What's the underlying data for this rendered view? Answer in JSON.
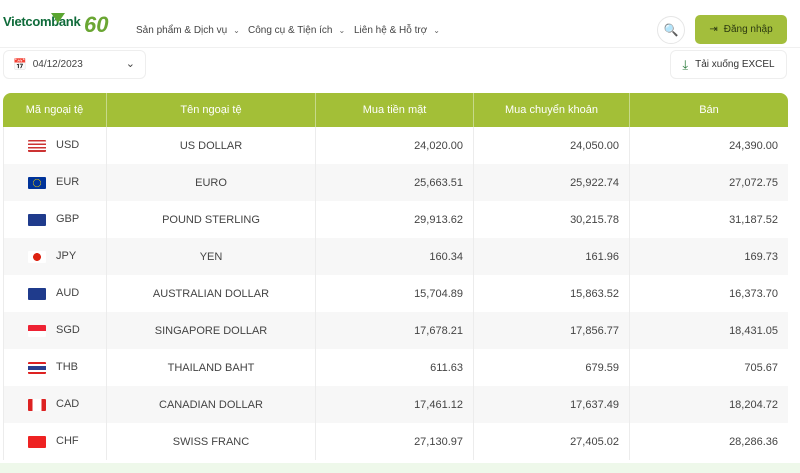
{
  "brand": {
    "name": "Vietcombank",
    "anniversary": "60"
  },
  "nav": {
    "items": [
      "Sản phẩm & Dịch vụ",
      "Công cụ & Tiện ích",
      "Liên hệ & Hỗ trợ"
    ],
    "login": "Đăng nhập"
  },
  "filter": {
    "date": "04/12/2023",
    "download": "Tải xuống EXCEL"
  },
  "colors": {
    "accent": "#a3bf37",
    "brand": "#0f6b3a"
  },
  "table": {
    "headers": [
      "Mã ngoại tệ",
      "Tên ngoại tệ",
      "Mua tiền mặt",
      "Mua chuyển khoản",
      "Bán"
    ],
    "rows": [
      {
        "code": "USD",
        "name": "US DOLLAR",
        "cash": "24,020.00",
        "transfer": "24,050.00",
        "sell": "24,390.00",
        "flag": "us-flag"
      },
      {
        "code": "EUR",
        "name": "EURO",
        "cash": "25,663.51",
        "transfer": "25,922.74",
        "sell": "27,072.75",
        "flag": "eu-flag"
      },
      {
        "code": "GBP",
        "name": "POUND STERLING",
        "cash": "29,913.62",
        "transfer": "30,215.78",
        "sell": "31,187.52",
        "flag": "uk-flag"
      },
      {
        "code": "JPY",
        "name": "YEN",
        "cash": "160.34",
        "transfer": "161.96",
        "sell": "169.73",
        "flag": "jp-flag"
      },
      {
        "code": "AUD",
        "name": "AUSTRALIAN DOLLAR",
        "cash": "15,704.89",
        "transfer": "15,863.52",
        "sell": "16,373.70",
        "flag": "au-flag"
      },
      {
        "code": "SGD",
        "name": "SINGAPORE DOLLAR",
        "cash": "17,678.21",
        "transfer": "17,856.77",
        "sell": "18,431.05",
        "flag": "sg-flag"
      },
      {
        "code": "THB",
        "name": "THAILAND BAHT",
        "cash": "611.63",
        "transfer": "679.59",
        "sell": "705.67",
        "flag": "th-flag"
      },
      {
        "code": "CAD",
        "name": "CANADIAN DOLLAR",
        "cash": "17,461.12",
        "transfer": "17,637.49",
        "sell": "18,204.72",
        "flag": "ca-flag"
      },
      {
        "code": "CHF",
        "name": "SWISS FRANC",
        "cash": "27,130.97",
        "transfer": "27,405.02",
        "sell": "28,286.36",
        "flag": "ch-flag"
      }
    ]
  }
}
